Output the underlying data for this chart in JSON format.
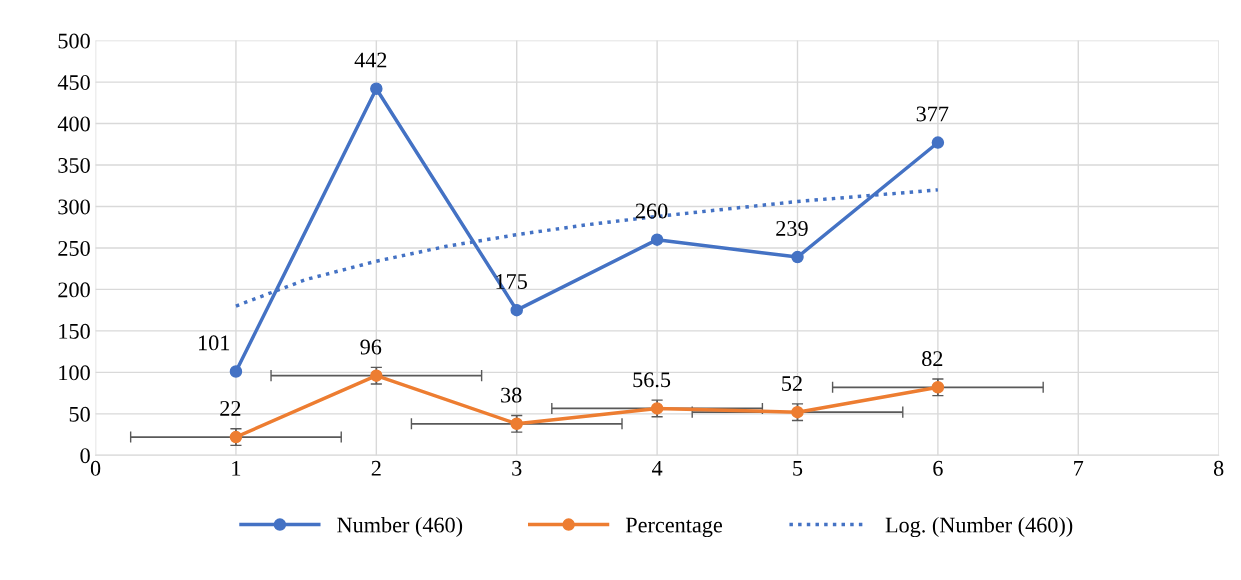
{
  "chart_data": {
    "type": "line",
    "x": [
      1,
      2,
      3,
      4,
      5,
      6
    ],
    "series": [
      {
        "name": "Number (460)",
        "color": "#4472c4",
        "values": [
          101,
          442,
          175,
          260,
          239,
          377
        ],
        "marker": "circle",
        "data_labels": true
      },
      {
        "name": "Percentage",
        "color": "#ed7d31",
        "values": [
          22,
          96,
          38,
          56.5,
          52,
          82
        ],
        "marker": "circle",
        "data_labels": true,
        "errors": [
          10,
          10,
          10,
          10,
          10,
          10
        ],
        "xerrors": [
          0.75,
          0.75,
          0.75,
          0.75,
          0.75,
          0.75
        ]
      },
      {
        "name": "Log. (Number (460))",
        "color": "#4472c4",
        "x": [
          1,
          1.5,
          2,
          2.5,
          3,
          3.5,
          4,
          4.5,
          5,
          5.5,
          6
        ],
        "values": [
          180,
          212,
          234,
          252,
          266,
          278,
          288,
          297,
          306,
          313,
          320
        ],
        "line_style": "dotted",
        "marker": "none"
      }
    ],
    "xlim": [
      0,
      8
    ],
    "xticks": [
      0,
      1,
      2,
      3,
      4,
      5,
      6,
      7,
      8
    ],
    "ylim": [
      0,
      500
    ],
    "yticks": [
      0,
      50,
      100,
      150,
      200,
      250,
      300,
      350,
      400,
      450,
      500
    ],
    "grid": true,
    "legend": "bottom"
  }
}
